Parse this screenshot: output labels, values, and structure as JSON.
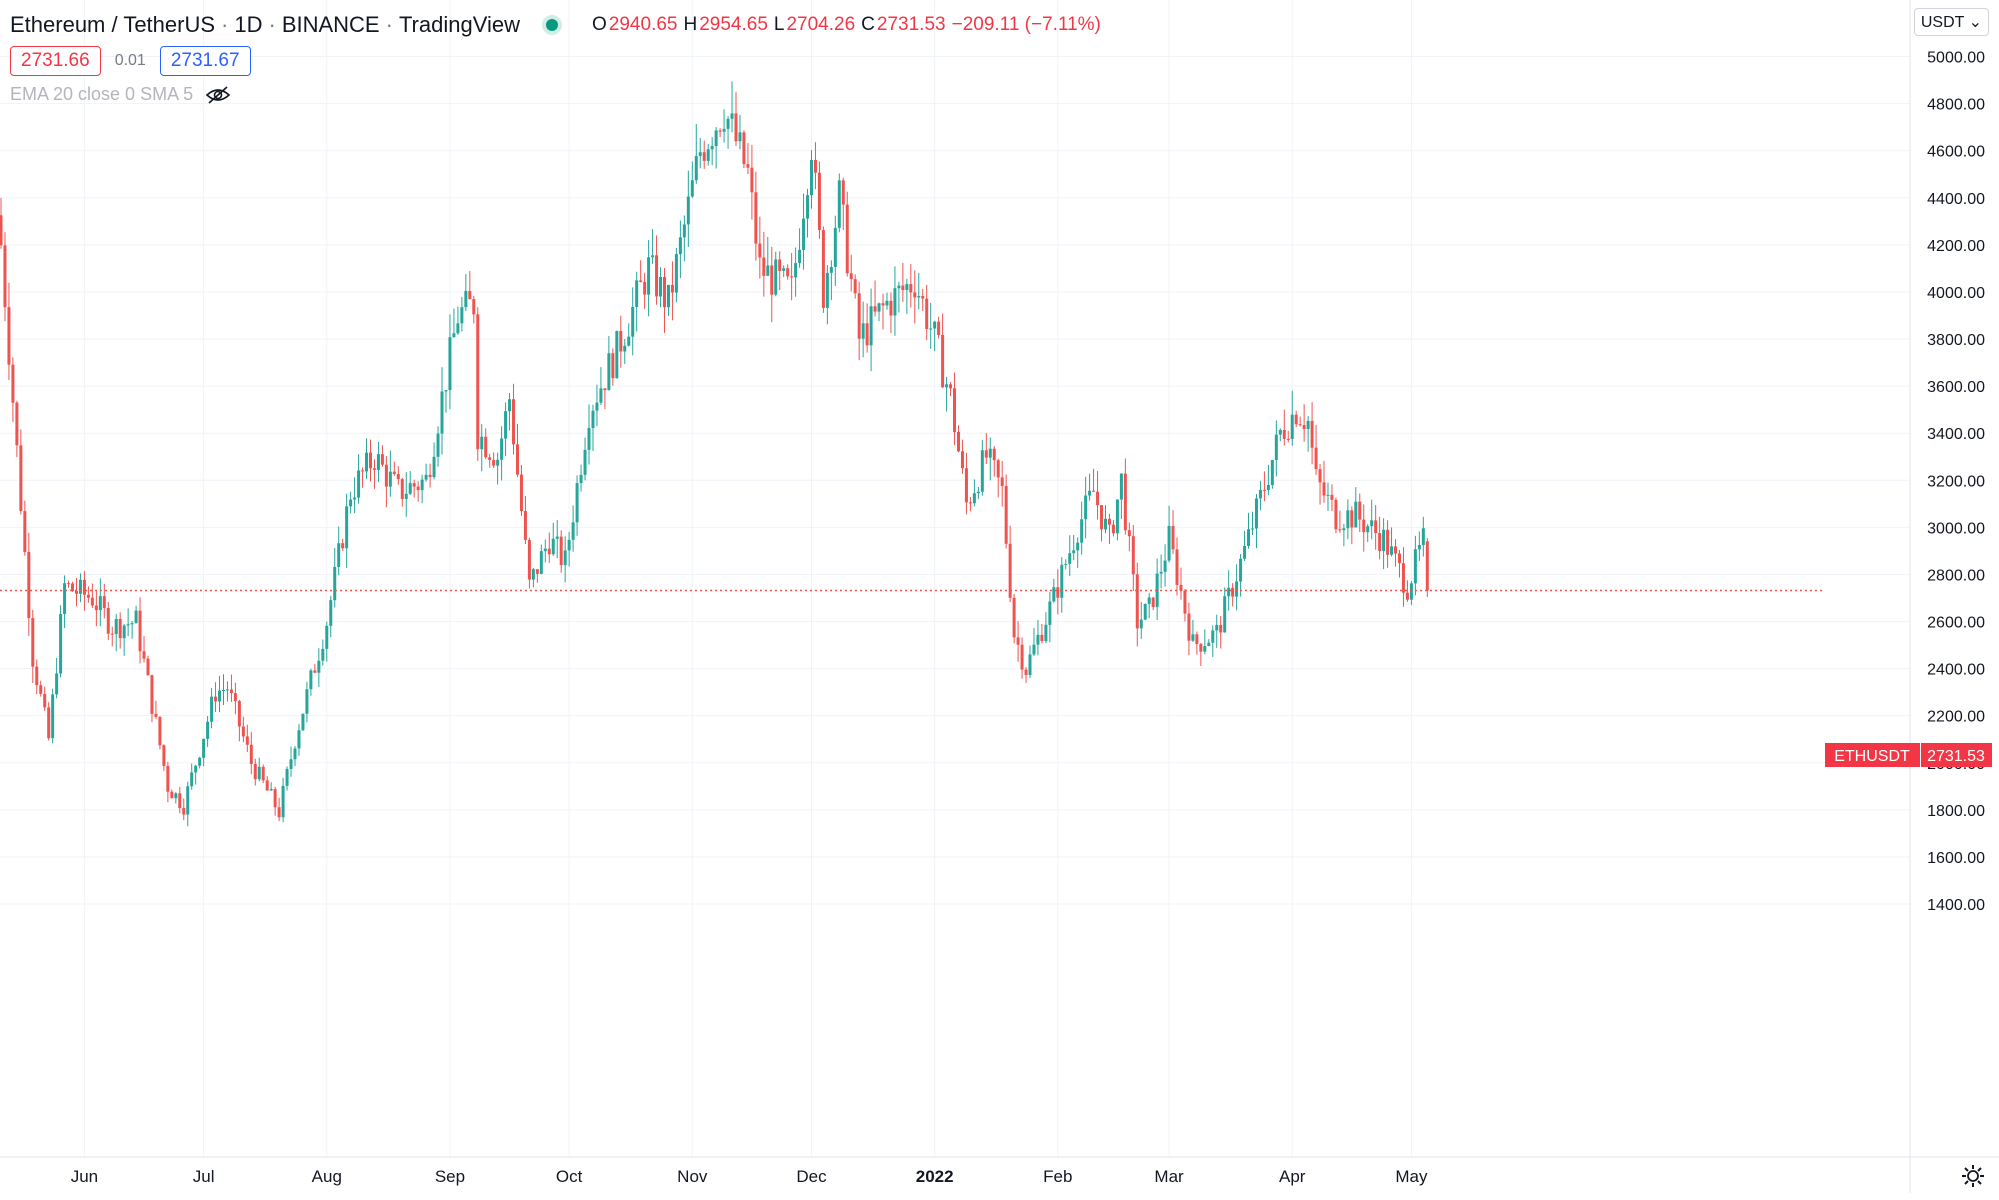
{
  "header": {
    "symbol": "Ethereum / TetherUS",
    "interval": "1D",
    "exchange": "BINANCE",
    "source": "TradingView",
    "open_label": "O",
    "open": "2940.65",
    "high_label": "H",
    "high": "2954.65",
    "low_label": "L",
    "low": "2704.26",
    "close_label": "C",
    "close": "2731.53",
    "change": "−209.11 (−7.11%)",
    "status_color": "#089981"
  },
  "quote": {
    "bid": "2731.66",
    "spread": "0.01",
    "ask": "2731.67"
  },
  "indicator": {
    "label": "EMA 20 close 0 SMA 5",
    "icon": "eye-crossed-icon"
  },
  "currency_button": "USDT",
  "settings_icon": "gear-icon",
  "colors": {
    "up": "#26a69a",
    "down": "#ef5350",
    "grid": "#f0f3fa",
    "axis_text": "#131722"
  },
  "chart_data": {
    "type": "candlestick",
    "symbol_tag": "ETHUSDT",
    "last_price": "2731.53",
    "ylim": [
      1400,
      5000
    ],
    "y_ticks": [
      "1400.00",
      "1600.00",
      "1800.00",
      "2000.00",
      "2200.00",
      "2400.00",
      "2600.00",
      "2800.00",
      "3000.00",
      "3200.00",
      "3400.00",
      "3600.00",
      "3800.00",
      "4000.00",
      "4200.00",
      "4400.00",
      "4600.00",
      "4800.00",
      "5000.00"
    ],
    "x_ticks": [
      {
        "label": "Jun",
        "date": "2021-06-01",
        "bold": false
      },
      {
        "label": "Jul",
        "date": "2021-07-01",
        "bold": false
      },
      {
        "label": "Aug",
        "date": "2021-08-01",
        "bold": false
      },
      {
        "label": "Sep",
        "date": "2021-09-01",
        "bold": false
      },
      {
        "label": "Oct",
        "date": "2021-10-01",
        "bold": false
      },
      {
        "label": "Nov",
        "date": "2021-11-01",
        "bold": false
      },
      {
        "label": "Dec",
        "date": "2021-12-01",
        "bold": false
      },
      {
        "label": "2022",
        "date": "2022-01-01",
        "bold": true
      },
      {
        "label": "Feb",
        "date": "2022-02-01",
        "bold": false
      },
      {
        "label": "Mar",
        "date": "2022-03-01",
        "bold": false
      },
      {
        "label": "Apr",
        "date": "2022-04-01",
        "bold": false
      },
      {
        "label": "May",
        "date": "2022-05-01",
        "bold": false
      }
    ],
    "close_path": [
      [
        "2021-05-11",
        4200
      ],
      [
        "2021-05-19",
        2450
      ],
      [
        "2021-05-23",
        2100
      ],
      [
        "2021-05-27",
        2750
      ],
      [
        "2021-06-03",
        2700
      ],
      [
        "2021-06-08",
        2580
      ],
      [
        "2021-06-14",
        2600
      ],
      [
        "2021-06-22",
        1900
      ],
      [
        "2021-06-26",
        1820
      ],
      [
        "2021-07-04",
        2300
      ],
      [
        "2021-07-07",
        2320
      ],
      [
        "2021-07-13",
        2000
      ],
      [
        "2021-07-20",
        1790
      ],
      [
        "2021-07-24",
        2100
      ],
      [
        "2021-08-01",
        2600
      ],
      [
        "2021-08-07",
        3150
      ],
      [
        "2021-08-13",
        3300
      ],
      [
        "2021-08-19",
        3150
      ],
      [
        "2021-08-26",
        3200
      ],
      [
        "2021-09-03",
        3900
      ],
      [
        "2021-09-07",
        3950
      ],
      [
        "2021-09-08",
        3400
      ],
      [
        "2021-09-13",
        3300
      ],
      [
        "2021-09-16",
        3550
      ],
      [
        "2021-09-21",
        2750
      ],
      [
        "2021-09-26",
        2950
      ],
      [
        "2021-09-30",
        2850
      ],
      [
        "2021-10-06",
        3500
      ],
      [
        "2021-10-13",
        3750
      ],
      [
        "2021-10-21",
        4100
      ],
      [
        "2021-10-26",
        3950
      ],
      [
        "2021-11-03",
        4600
      ],
      [
        "2021-11-09",
        4780
      ],
      [
        "2021-11-15",
        4500
      ],
      [
        "2021-11-18",
        4100
      ],
      [
        "2021-11-26",
        4000
      ],
      [
        "2021-12-01",
        4640
      ],
      [
        "2021-12-04",
        4000
      ],
      [
        "2021-12-08",
        4400
      ],
      [
        "2021-12-13",
        3800
      ],
      [
        "2021-12-20",
        3950
      ],
      [
        "2021-12-27",
        4050
      ],
      [
        "2022-01-01",
        3800
      ],
      [
        "2022-01-05",
        3550
      ],
      [
        "2022-01-09",
        3100
      ],
      [
        "2022-01-14",
        3300
      ],
      [
        "2022-01-18",
        3150
      ],
      [
        "2022-01-21",
        2550
      ],
      [
        "2022-01-24",
        2400
      ],
      [
        "2022-01-31",
        2700
      ],
      [
        "2022-02-06",
        3000
      ],
      [
        "2022-02-10",
        3150
      ],
      [
        "2022-02-14",
        2950
      ],
      [
        "2022-02-17",
        3200
      ],
      [
        "2022-02-21",
        2600
      ],
      [
        "2022-02-24",
        2650
      ],
      [
        "2022-03-01",
        2950
      ],
      [
        "2022-03-07",
        2500
      ],
      [
        "2022-03-13",
        2550
      ],
      [
        "2022-03-20",
        2900
      ],
      [
        "2022-03-29",
        3400
      ],
      [
        "2022-04-02",
        3500
      ],
      [
        "2022-04-05",
        3450
      ],
      [
        "2022-04-07",
        3200
      ],
      [
        "2022-04-12",
        3050
      ],
      [
        "2022-04-17",
        3050
      ],
      [
        "2022-04-24",
        2950
      ],
      [
        "2022-04-30",
        2750
      ],
      [
        "2022-05-04",
        2940
      ],
      [
        "2022-05-05",
        2731.53
      ]
    ]
  }
}
